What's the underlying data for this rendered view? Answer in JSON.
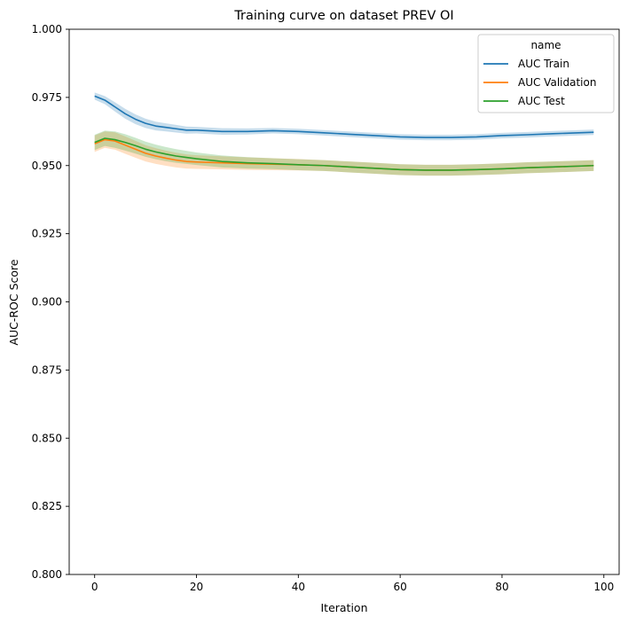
{
  "chart_data": {
    "type": "line",
    "title": "Training curve on dataset PREV OI",
    "xlabel": "Iteration",
    "ylabel": "AUC-ROC Score",
    "xlim": [
      -5,
      103
    ],
    "ylim": [
      0.8,
      1.0
    ],
    "xticks": [
      0,
      20,
      40,
      60,
      80,
      100
    ],
    "xtick_labels": [
      "0",
      "20",
      "40",
      "60",
      "80",
      "100"
    ],
    "yticks": [
      0.8,
      0.825,
      0.85,
      0.875,
      0.9,
      0.925,
      0.95,
      0.975,
      1.0
    ],
    "ytick_labels": [
      "0.800",
      "0.825",
      "0.850",
      "0.875",
      "0.900",
      "0.925",
      "0.950",
      "0.975",
      "1.000"
    ],
    "grid": false,
    "legend": {
      "title": "name",
      "placement": "top-right"
    },
    "series": [
      {
        "name": "AUC Train",
        "color": "#1f77b4",
        "x": [
          0,
          2,
          4,
          6,
          8,
          10,
          12,
          14,
          16,
          18,
          20,
          25,
          30,
          35,
          40,
          45,
          50,
          55,
          60,
          65,
          70,
          75,
          80,
          85,
          90,
          95,
          98
        ],
        "y": [
          0.9755,
          0.974,
          0.9715,
          0.969,
          0.967,
          0.9655,
          0.9645,
          0.964,
          0.9635,
          0.963,
          0.963,
          0.9625,
          0.9625,
          0.9628,
          0.9625,
          0.962,
          0.9615,
          0.961,
          0.9605,
          0.9603,
          0.9603,
          0.9605,
          0.961,
          0.9613,
          0.9617,
          0.962,
          0.9622
        ],
        "band": [
          0.0013,
          0.0015,
          0.0017,
          0.0018,
          0.0018,
          0.0017,
          0.0016,
          0.0015,
          0.0014,
          0.0013,
          0.0012,
          0.0012,
          0.0011,
          0.001,
          0.001,
          0.001,
          0.001,
          0.001,
          0.001,
          0.001,
          0.001,
          0.001,
          0.001,
          0.001,
          0.001,
          0.001,
          0.001
        ]
      },
      {
        "name": "AUC Validation",
        "color": "#ff7f0e",
        "x": [
          0,
          2,
          4,
          6,
          8,
          10,
          12,
          14,
          16,
          18,
          20,
          25,
          30,
          35,
          40,
          45,
          50,
          55,
          60,
          65,
          70,
          75,
          80,
          85,
          90,
          95,
          98
        ],
        "y": [
          0.958,
          0.9595,
          0.959,
          0.9575,
          0.956,
          0.9545,
          0.9535,
          0.9527,
          0.952,
          0.9515,
          0.9513,
          0.951,
          0.9507,
          0.9505,
          0.9503,
          0.95,
          0.9495,
          0.949,
          0.9485,
          0.9483,
          0.9483,
          0.9485,
          0.9488,
          0.9492,
          0.9495,
          0.9498,
          0.95
        ],
        "band": [
          0.003,
          0.003,
          0.0032,
          0.0032,
          0.0031,
          0.003,
          0.0029,
          0.0028,
          0.0027,
          0.0026,
          0.0025,
          0.0024,
          0.0023,
          0.0022,
          0.0021,
          0.002,
          0.002,
          0.002,
          0.002,
          0.002,
          0.002,
          0.002,
          0.002,
          0.002,
          0.002,
          0.002,
          0.002
        ]
      },
      {
        "name": "AUC Test",
        "color": "#2ca02c",
        "x": [
          0,
          2,
          4,
          6,
          8,
          10,
          12,
          14,
          16,
          18,
          20,
          25,
          30,
          35,
          40,
          45,
          50,
          55,
          60,
          65,
          70,
          75,
          80,
          85,
          90,
          95,
          98
        ],
        "y": [
          0.9585,
          0.96,
          0.9595,
          0.9585,
          0.9573,
          0.956,
          0.955,
          0.9542,
          0.9535,
          0.953,
          0.9525,
          0.9515,
          0.951,
          0.9507,
          0.9503,
          0.95,
          0.9495,
          0.949,
          0.9485,
          0.9483,
          0.9483,
          0.9485,
          0.9488,
          0.9492,
          0.9495,
          0.9498,
          0.95
        ],
        "band": [
          0.0028,
          0.0028,
          0.003,
          0.003,
          0.0029,
          0.0028,
          0.0027,
          0.0026,
          0.0025,
          0.0024,
          0.0023,
          0.0022,
          0.0021,
          0.002,
          0.002,
          0.002,
          0.002,
          0.002,
          0.002,
          0.002,
          0.002,
          0.002,
          0.002,
          0.002,
          0.002,
          0.002,
          0.002
        ]
      }
    ]
  }
}
